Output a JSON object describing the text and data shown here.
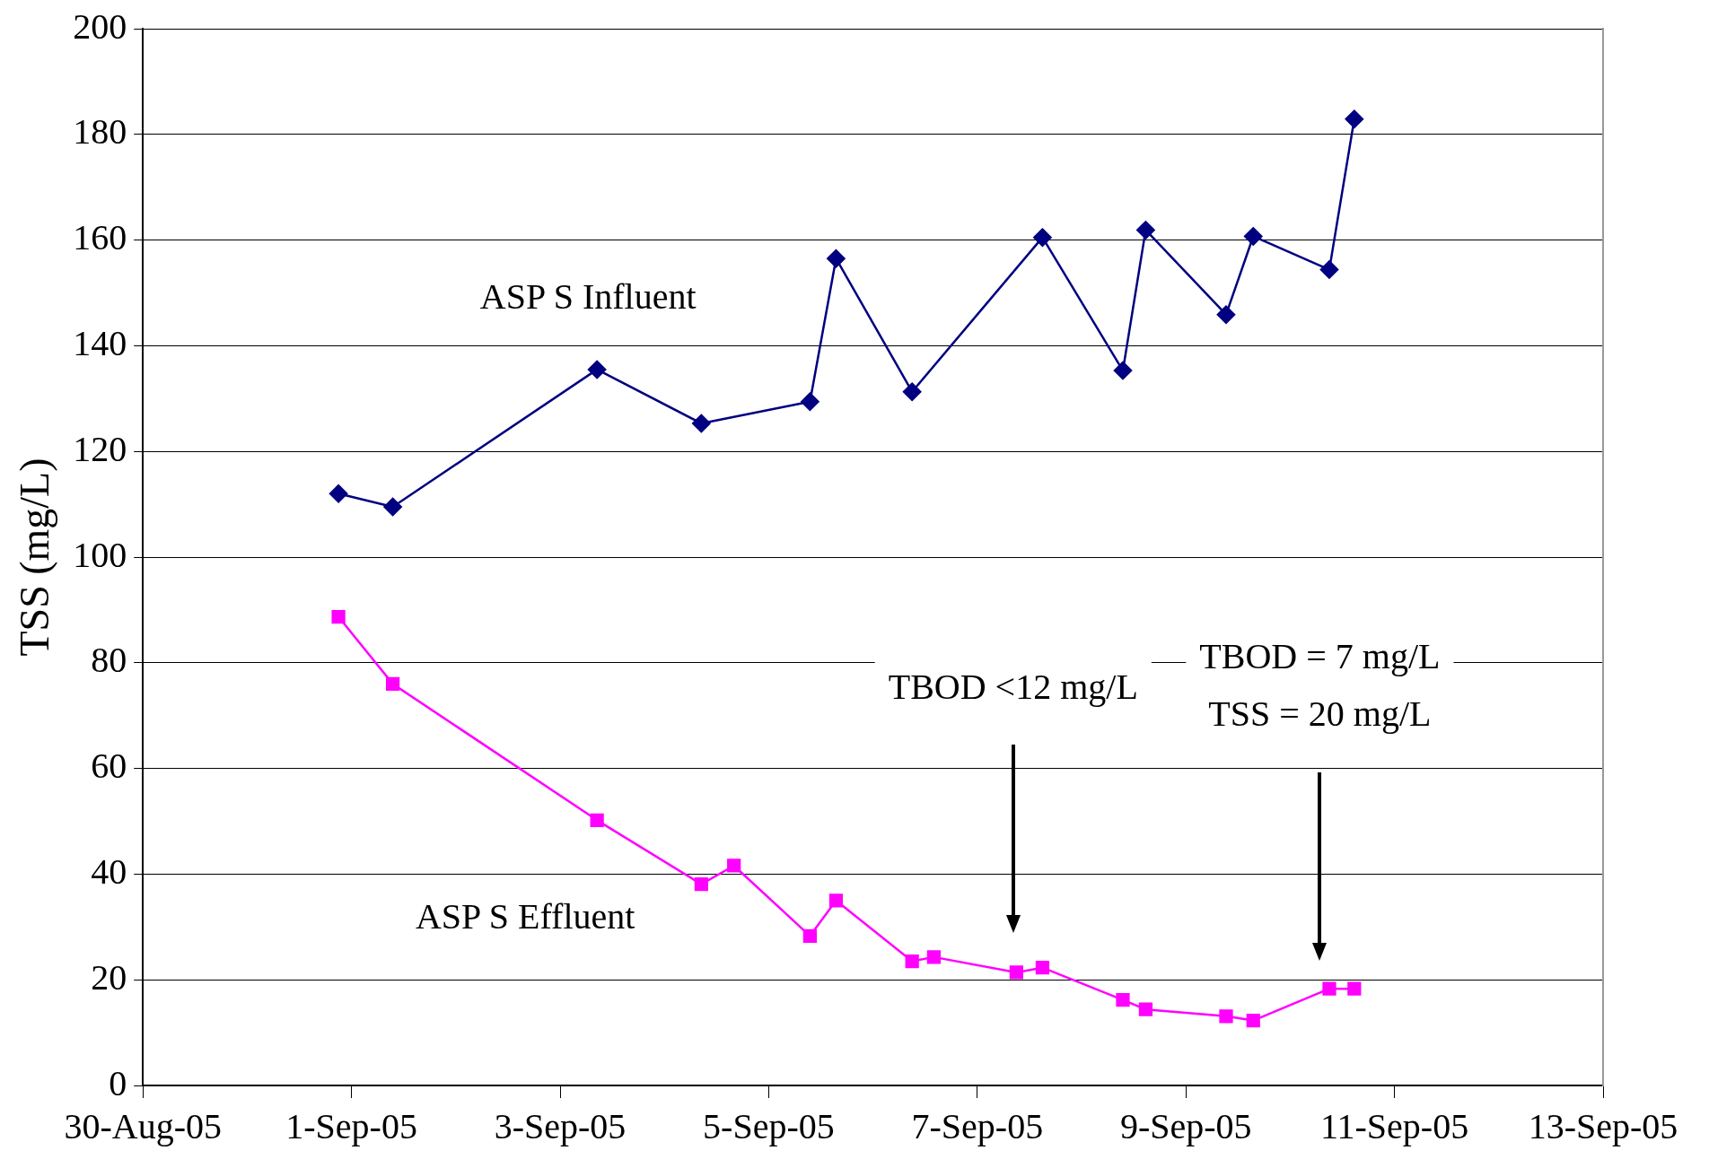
{
  "chart_data": {
    "type": "line",
    "ylabel": "TSS (mg/L)",
    "series": [
      {
        "name": "ASP S Influent",
        "color": "#000080",
        "marker": "diamond",
        "x": [
          "--08-31T21:00",
          "--09-01T09:30",
          "--09-03T08:30",
          "--09-04T08:30",
          "--09-05T09:30",
          "--09-05T15:30",
          "--09-06T09:00",
          "--09-07T15:00",
          "--09-08T09:30",
          "--09-08T14:45",
          "--09-09T09:15",
          "--09-09T15:30",
          "--09-10T09:00",
          "--09-10T14:45"
        ],
        "values": [
          112,
          109.5,
          135.5,
          125.3,
          129.4,
          156.5,
          131.3,
          160.5,
          135.3,
          161.9,
          145.9,
          160.7,
          154.4,
          182.9
        ]
      },
      {
        "name": "ASP S Effluent",
        "color": "#ff00ff",
        "marker": "square",
        "x": [
          "--08-31T21:00",
          "--09-01T09:30",
          "--09-03T08:30",
          "--09-04T08:30",
          "--09-04T16:00",
          "--09-05T09:30",
          "--09-05T15:30",
          "--09-06T09:00",
          "--09-06T14:00",
          "--09-07T09:00",
          "--09-07T15:00",
          "--09-08T09:30",
          "--09-08T14:45",
          "--09-09T09:15",
          "--09-09T15:30",
          "--09-10T09:00",
          "--09-10T14:45"
        ],
        "values": [
          88.7,
          76,
          50.2,
          38.1,
          41.6,
          28.3,
          35,
          23.5,
          24.3,
          21.4,
          22.3,
          16.2,
          14.4,
          13.1,
          12.3,
          18.3,
          18.3
        ]
      }
    ],
    "annotations": [
      "TBOD <12 mg/L",
      "TBOD = 7 mg/L\nTSS = 20 mg/L"
    ],
    "xlim": [
      "--08-30",
      "--09-13"
    ],
    "xticks": [
      {
        "value": "--08-30",
        "label": "30-Aug-05"
      },
      {
        "value": "--09-01",
        "label": "1-Sep-05"
      },
      {
        "value": "--09-03",
        "label": "3-Sep-05"
      },
      {
        "value": "--09-05",
        "label": "5-Sep-05"
      },
      {
        "value": "--09-07",
        "label": "7-Sep-05"
      },
      {
        "value": "--09-09",
        "label": "9-Sep-05"
      },
      {
        "value": "--09-11",
        "label": "11-Sep-05"
      },
      {
        "value": "--09-13",
        "label": "13-Sep-05"
      }
    ],
    "ylim": [
      0,
      200
    ],
    "yticks": [
      0,
      20,
      40,
      60,
      80,
      100,
      120,
      140,
      160,
      180,
      200
    ],
    "grid": "y",
    "legend": false,
    "line_style": "solid"
  }
}
